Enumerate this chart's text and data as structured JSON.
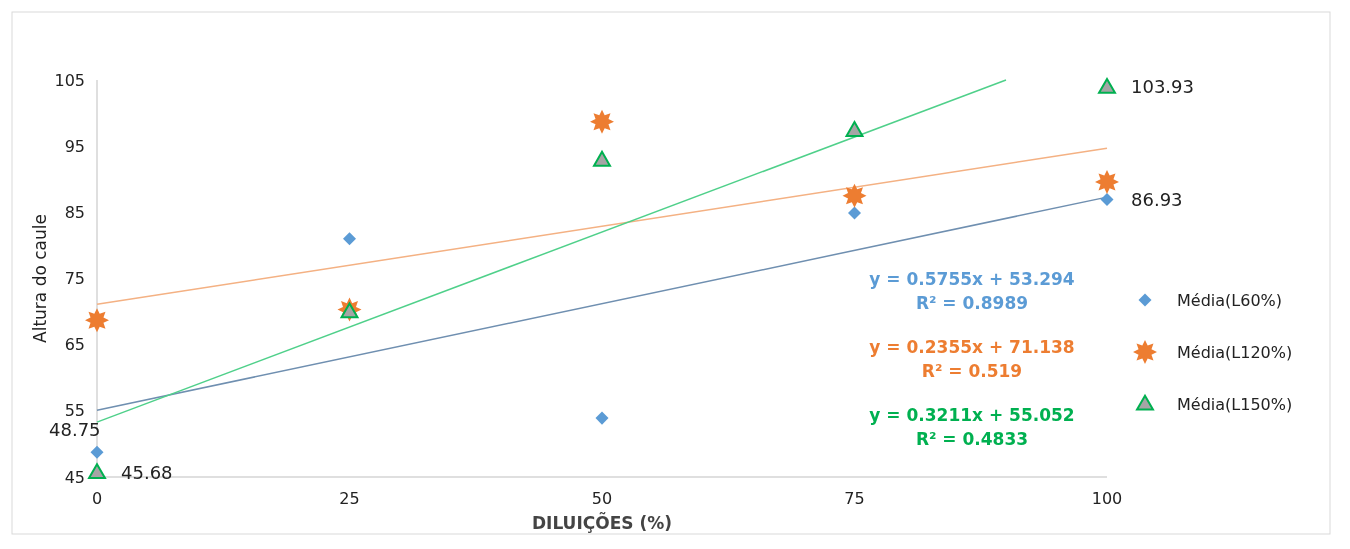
{
  "chart_data": {
    "type": "scatter",
    "xlabel": "DILUIÇÕES (%)",
    "ylabel": "Altura do caule",
    "x": [
      0,
      25,
      50,
      75,
      100
    ],
    "xlim": [
      0,
      100
    ],
    "xticks": [
      0,
      25,
      50,
      75,
      100
    ],
    "ylim": [
      45,
      105
    ],
    "yticks": [
      45,
      55,
      65,
      75,
      85,
      95,
      105
    ],
    "grid": false,
    "legend": "right",
    "series": [
      {
        "name": "Média(L60%)",
        "color": "#5b9bd5",
        "marker": "diamond",
        "values": [
          48.75,
          81,
          53.9,
          84.9,
          86.93
        ],
        "value_labels": [
          "48.75",
          null,
          null,
          null,
          "86.93"
        ]
      },
      {
        "name": "Média(L120%)",
        "color": "#ed7d31",
        "marker": "star",
        "values": [
          68.7,
          70.3,
          98.7,
          87.5,
          89.6
        ]
      },
      {
        "name": "Média(L150%)",
        "color": "#00b050",
        "marker": "triangle",
        "values": [
          45.68,
          70,
          92.9,
          97.4,
          103.93
        ],
        "value_labels": [
          "45.68",
          null,
          null,
          null,
          "103.93"
        ]
      },
      {
        "type": "line",
        "color": "#6f8fb0",
        "x": [
          0,
          100
        ],
        "values": [
          55.1,
          87.3
        ]
      },
      {
        "type": "line",
        "color": "#f4b183",
        "x": [
          0,
          100
        ],
        "values": [
          71.1,
          94.7
        ]
      },
      {
        "type": "line",
        "color": "#4fd08a",
        "x": [
          0,
          90
        ],
        "values": [
          53.3,
          105
        ]
      }
    ],
    "annotations": [
      "y = 0.5755x + 53.294\nR² = 0.8989",
      "y = 0.2355x + 71.138\nR² = 0.519",
      "y = 0.3211x + 55.052\nR² = 0.4833"
    ]
  }
}
